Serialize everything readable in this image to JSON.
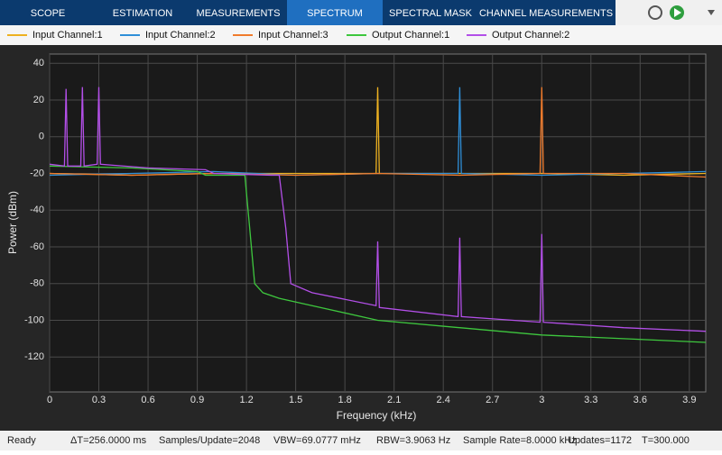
{
  "toolbar": {
    "tabs": [
      "SCOPE",
      "ESTIMATION",
      "MEASUREMENTS",
      "SPECTRUM",
      "SPECTRAL MASK",
      "CHANNEL MEASUREMENTS"
    ],
    "active": 3
  },
  "chart_data": {
    "type": "line",
    "xlabel": "Frequency (kHz)",
    "ylabel": "Power (dBm)",
    "xlim": [
      0,
      4.0
    ],
    "ylim": [
      -139,
      45
    ],
    "xticks": [
      0,
      0.3,
      0.6,
      0.9,
      1.2,
      1.5,
      1.8,
      2.1,
      2.4,
      2.7,
      3,
      3.3,
      3.6,
      3.9
    ],
    "yticks": [
      40,
      20,
      0,
      -20,
      -40,
      -60,
      -80,
      -100,
      -120
    ],
    "grid": true,
    "series": [
      {
        "name": "Input Channel:1",
        "color": "#edb120",
        "x": [
          0,
          0.5,
          1.0,
          1.5,
          1.99,
          2.0,
          2.01,
          2.5,
          3.0,
          3.5,
          4.0
        ],
        "values": [
          -20,
          -21,
          -20,
          -20,
          -20,
          27,
          -20,
          -20,
          -20,
          -21,
          -20
        ]
      },
      {
        "name": "Input Channel:2",
        "color": "#2f8fd8",
        "x": [
          0,
          0.5,
          1.0,
          1.5,
          2.0,
          2.49,
          2.5,
          2.51,
          3.0,
          3.5,
          4.0
        ],
        "values": [
          -21,
          -20,
          -19,
          -21,
          -20,
          -20,
          27,
          -20,
          -21,
          -20,
          -19
        ]
      },
      {
        "name": "Input Channel:3",
        "color": "#f07b2c",
        "x": [
          0,
          0.5,
          1.0,
          1.5,
          2.0,
          2.5,
          2.99,
          3.0,
          3.01,
          3.5,
          4.0
        ],
        "values": [
          -20,
          -21,
          -20,
          -21,
          -20,
          -21,
          -20,
          27,
          -20,
          -20,
          -22
        ]
      },
      {
        "name": "Output Channel:1",
        "color": "#3ec73e",
        "x": [
          0,
          0.5,
          0.9,
          0.95,
          1.19,
          1.22,
          1.25,
          1.3,
          1.4,
          1.6,
          2.0,
          2.5,
          3.0,
          3.5,
          4.0
        ],
        "values": [
          -16,
          -17,
          -19,
          -21,
          -21,
          -50,
          -80,
          -85,
          -88,
          -92,
          -100,
          -104,
          -108,
          -110,
          -112
        ]
      },
      {
        "name": "Output Channel:2",
        "color": "#b34fe8",
        "x": [
          0,
          0.09,
          0.1,
          0.11,
          0.19,
          0.2,
          0.21,
          0.29,
          0.3,
          0.31,
          0.6,
          0.95,
          1.0,
          1.35,
          1.4,
          1.44,
          1.47,
          1.6,
          1.99,
          2.0,
          2.01,
          2.49,
          2.5,
          2.51,
          2.99,
          3.0,
          3.01,
          3.5,
          4.0
        ],
        "values": [
          -15,
          -16,
          26,
          -16,
          -16,
          27,
          -16,
          -15,
          27,
          -15,
          -17,
          -18,
          -20,
          -21,
          -21,
          -50,
          -80,
          -85,
          -92,
          -57,
          -93,
          -98,
          -55,
          -98,
          -101,
          -53,
          -101,
          -104,
          -106
        ]
      }
    ]
  },
  "status_bar": [
    "Ready",
    "ΔT=256.0000 ms",
    "Samples/Update=2048",
    "VBW=69.0777 mHz",
    "RBW=3.9063 Hz",
    "Sample Rate=8.0000 kHz",
    "Updates=1172",
    "T=300.000"
  ]
}
